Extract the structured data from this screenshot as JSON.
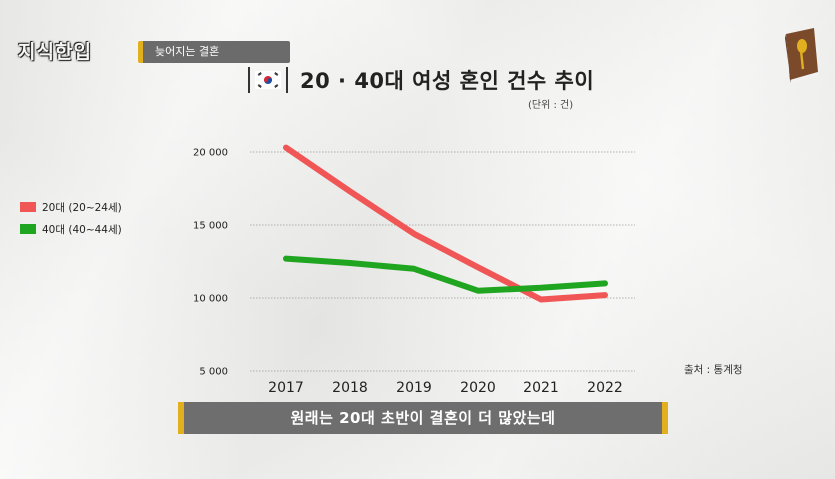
{
  "header": {
    "logo_text": "지식한입",
    "topic_label": "늦어지는 결혼",
    "book_icon": "book-with-spoon-icon"
  },
  "chart_data": {
    "type": "line",
    "title": "20 · 40대 여성 혼인 건수 추이",
    "unit_label": "(단위 : 건)",
    "x": [
      "2017",
      "2018",
      "2019",
      "2020",
      "2021",
      "2022"
    ],
    "y_ticks": [
      "20 000",
      "15 000",
      "10 000",
      "5 000"
    ],
    "ylim": [
      5000,
      20000
    ],
    "series": [
      {
        "name": "20대 (20~24세)",
        "color": "#f05656",
        "values": [
          20300,
          17300,
          14400,
          12100,
          9900,
          10200
        ]
      },
      {
        "name": "40대 (40~44세)",
        "color": "#1fa51f",
        "values": [
          12700,
          12400,
          12000,
          10500,
          10700,
          11000
        ]
      }
    ],
    "grid": true,
    "legend_position": "left",
    "source": "출처 : 통계청"
  },
  "caption": {
    "text": "원래는 20대 초반이 결혼이 더 많았는데",
    "accent_color": "#e2b01e"
  }
}
